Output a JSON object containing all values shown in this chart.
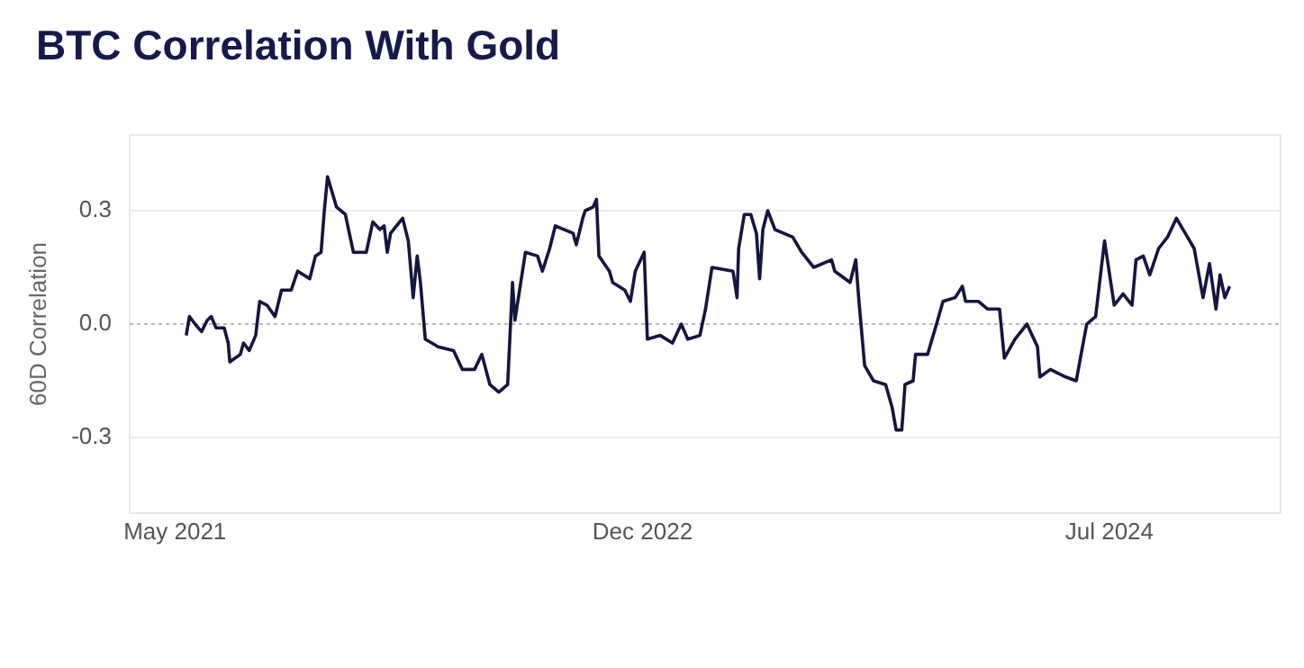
{
  "chart_data": {
    "type": "line",
    "title": "BTC Correlation With Gold",
    "ylabel": "60D Correlation",
    "xlim": [
      "2021-03-06",
      "2025-01-29"
    ],
    "ylim": [
      -0.5,
      0.5
    ],
    "xticks": [
      {
        "value": "2021-05-01",
        "label": "May 2021"
      },
      {
        "value": "2022-12-01",
        "label": "Dec 2022"
      },
      {
        "value": "2024-07-01",
        "label": "Jul 2024"
      }
    ],
    "yticks": [
      {
        "value": -0.3,
        "label": "-0.3"
      },
      {
        "value": 0,
        "label": "0.0"
      },
      {
        "value": 0.3,
        "label": "0.3"
      }
    ],
    "grid": "y",
    "legend": false,
    "ref_lines": [
      {
        "axis": "y",
        "value": 0,
        "color": "#b8b8b8",
        "line_style": "dotted"
      }
    ],
    "series": [
      {
        "color": "#14163f",
        "x": [
          "2021-05-15",
          "2021-05-19",
          "2021-05-26",
          "2021-06-03",
          "2021-06-10",
          "2021-06-15",
          "2021-06-21",
          "2021-07-01",
          "2021-07-06",
          "2021-07-08",
          "2021-07-21",
          "2021-07-25",
          "2021-08-01",
          "2021-08-09",
          "2021-08-14",
          "2021-08-23",
          "2021-09-02",
          "2021-09-10",
          "2021-09-22",
          "2021-09-30",
          "2021-10-15",
          "2021-10-22",
          "2021-10-29",
          "2021-11-02",
          "2021-11-06",
          "2021-11-17",
          "2021-11-28",
          "2021-12-08",
          "2021-12-24",
          "2022-01-01",
          "2022-01-10",
          "2022-01-15",
          "2022-01-19",
          "2022-01-23",
          "2022-02-07",
          "2022-02-14",
          "2022-02-20",
          "2022-02-25",
          "2022-03-01",
          "2022-03-07",
          "2022-03-23",
          "2022-04-11",
          "2022-04-22",
          "2022-05-07",
          "2022-05-16",
          "2022-05-26",
          "2022-06-06",
          "2022-06-17",
          "2022-06-23",
          "2022-06-26",
          "2022-07-09",
          "2022-07-24",
          "2022-07-30",
          "2022-08-08",
          "2022-08-15",
          "2022-09-06",
          "2022-09-10",
          "2022-09-18",
          "2022-09-21",
          "2022-10-01",
          "2022-10-05",
          "2022-10-08",
          "2022-10-21",
          "2022-10-25",
          "2022-11-09",
          "2022-11-16",
          "2022-11-22",
          "2022-12-03",
          "2022-12-07",
          "2022-12-23",
          "2023-01-07",
          "2023-01-18",
          "2023-01-26",
          "2023-02-10",
          "2023-02-17",
          "2023-02-25",
          "2023-03-23",
          "2023-03-28",
          "2023-03-30",
          "2023-04-06",
          "2023-04-14",
          "2023-04-21",
          "2023-04-25",
          "2023-04-29",
          "2023-05-05",
          "2023-05-14",
          "2023-06-05",
          "2023-06-16",
          "2023-07-01",
          "2023-07-23",
          "2023-07-27",
          "2023-08-15",
          "2023-08-22",
          "2023-08-26",
          "2023-09-02",
          "2023-09-13",
          "2023-09-28",
          "2023-10-06",
          "2023-10-11",
          "2023-10-18",
          "2023-10-22",
          "2023-11-01",
          "2023-11-04",
          "2023-11-19",
          "2023-11-30",
          "2023-12-08",
          "2023-12-23",
          "2024-01-01",
          "2024-01-05",
          "2024-01-21",
          "2024-02-01",
          "2024-02-16",
          "2024-02-22",
          "2024-03-06",
          "2024-03-21",
          "2024-04-03",
          "2024-04-06",
          "2024-04-19",
          "2024-05-08",
          "2024-05-21",
          "2024-05-27",
          "2024-06-03",
          "2024-06-14",
          "2024-06-25",
          "2024-07-07",
          "2024-07-18",
          "2024-07-29",
          "2024-08-03",
          "2024-08-12",
          "2024-08-20",
          "2024-08-31",
          "2024-09-11",
          "2024-09-22",
          "2024-10-03",
          "2024-10-14",
          "2024-10-25",
          "2024-11-02",
          "2024-11-10",
          "2024-11-15",
          "2024-11-21",
          "2024-11-27"
        ],
        "values": [
          -0.03,
          0.02,
          0.0,
          -0.02,
          0.01,
          0.02,
          -0.01,
          -0.01,
          -0.05,
          -0.1,
          -0.08,
          -0.05,
          -0.07,
          -0.03,
          0.06,
          0.05,
          0.02,
          0.09,
          0.09,
          0.14,
          0.12,
          0.18,
          0.19,
          0.3,
          0.39,
          0.31,
          0.29,
          0.19,
          0.19,
          0.27,
          0.25,
          0.26,
          0.19,
          0.24,
          0.28,
          0.22,
          0.07,
          0.18,
          0.11,
          -0.04,
          -0.06,
          -0.07,
          -0.12,
          -0.12,
          -0.08,
          -0.16,
          -0.18,
          -0.16,
          0.11,
          0.01,
          0.19,
          0.18,
          0.14,
          0.2,
          0.26,
          0.24,
          0.21,
          0.28,
          0.3,
          0.31,
          0.33,
          0.18,
          0.14,
          0.11,
          0.09,
          0.06,
          0.14,
          0.19,
          -0.04,
          -0.03,
          -0.05,
          0.0,
          -0.04,
          -0.03,
          0.04,
          0.15,
          0.14,
          0.07,
          0.2,
          0.29,
          0.29,
          0.24,
          0.12,
          0.25,
          0.3,
          0.25,
          0.23,
          0.19,
          0.15,
          0.17,
          0.14,
          0.11,
          0.17,
          0.06,
          -0.11,
          -0.15,
          -0.16,
          -0.22,
          -0.28,
          -0.28,
          -0.16,
          -0.15,
          -0.08,
          -0.08,
          0.0,
          0.06,
          0.07,
          0.1,
          0.06,
          0.06,
          0.04,
          0.04,
          -0.09,
          -0.04,
          0.0,
          -0.06,
          -0.14,
          -0.12,
          -0.14,
          -0.15,
          -0.08,
          0.0,
          0.02,
          0.22,
          0.05,
          0.08,
          0.05,
          0.17,
          0.18,
          0.13,
          0.2,
          0.23,
          0.28,
          0.24,
          0.2,
          0.07,
          0.16,
          0.04,
          0.13,
          0.07,
          0.1
        ]
      }
    ]
  }
}
